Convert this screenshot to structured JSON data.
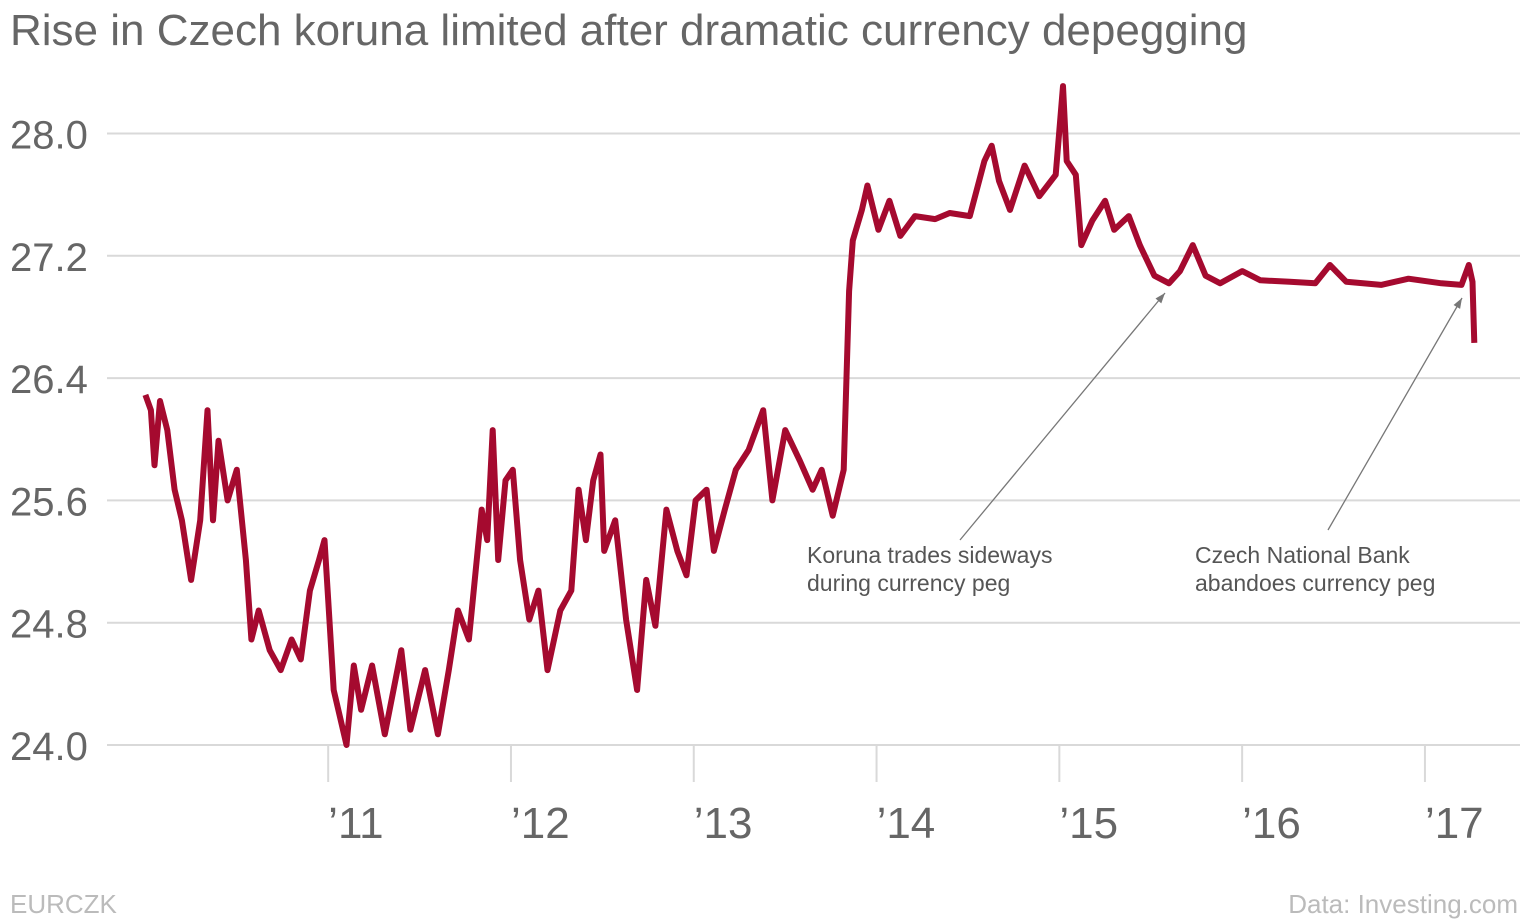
{
  "chart_data": {
    "type": "line",
    "title": "Rise in Czech koruna limited after dramatic currency depegging",
    "source": "Data: Investing.com",
    "footnote": "EURCZK",
    "color": "#a50a2f",
    "grid": true,
    "xlim": [
      2009.79,
      2017.52
    ],
    "ylim": [
      24.0,
      28.35
    ],
    "yticks": [
      {
        "value": 24,
        "label": "24.0"
      },
      24.8,
      25.6,
      26.4,
      27.2,
      {
        "value": 28,
        "label": "28.0"
      }
    ],
    "xticks": [
      {
        "value": 2011,
        "label": "’11"
      },
      {
        "value": 2012,
        "label": "’12"
      },
      {
        "value": 2013,
        "label": "’13"
      },
      {
        "value": 2014,
        "label": "’14"
      },
      {
        "value": 2015,
        "label": "’15"
      },
      {
        "value": 2016,
        "label": "’16"
      },
      {
        "value": 2017,
        "label": "’17"
      }
    ],
    "x": [
      2010.0,
      2010.03,
      2010.05,
      2010.08,
      2010.12,
      2010.16,
      2010.2,
      2010.25,
      2010.3,
      2010.34,
      2010.37,
      2010.4,
      2010.45,
      2010.5,
      2010.55,
      2010.58,
      2010.62,
      2010.68,
      2010.74,
      2010.8,
      2010.85,
      2010.9,
      2010.95,
      2010.98,
      2011.0,
      2011.03,
      2011.1,
      2011.14,
      2011.18,
      2011.24,
      2011.31,
      2011.4,
      2011.45,
      2011.53,
      2011.6,
      2011.66,
      2011.71,
      2011.77,
      2011.84,
      2011.87,
      2011.9,
      2011.93,
      2011.97,
      2012.01,
      2012.05,
      2012.1,
      2012.15,
      2012.2,
      2012.27,
      2012.33,
      2012.37,
      2012.41,
      2012.45,
      2012.49,
      2012.51,
      2012.57,
      2012.63,
      2012.69,
      2012.74,
      2012.79,
      2012.85,
      2012.91,
      2012.96,
      2013.01,
      2013.07,
      2013.11,
      2013.17,
      2013.23,
      2013.3,
      2013.38,
      2013.43,
      2013.5,
      2013.58,
      2013.65,
      2013.7,
      2013.76,
      2013.82,
      2013.85,
      2013.87,
      2013.92,
      2013.95,
      2014.01,
      2014.07,
      2014.13,
      2014.21,
      2014.32,
      2014.4,
      2014.51,
      2014.59,
      2014.63,
      2014.67,
      2014.73,
      2014.81,
      2014.89,
      2014.98,
      2015.02,
      2015.04,
      2015.09,
      2015.12,
      2015.18,
      2015.25,
      2015.3,
      2015.38,
      2015.44,
      2015.52,
      2015.6,
      2015.66,
      2015.73,
      2015.8,
      2015.88,
      2016.0,
      2016.1,
      2016.26,
      2016.4,
      2016.48,
      2016.57,
      2016.76,
      2016.91,
      2017.09,
      2017.2,
      2017.24,
      2017.26,
      2017.27
    ],
    "values": [
      26.29,
      26.19,
      25.83,
      26.25,
      26.06,
      25.67,
      25.47,
      25.08,
      25.47,
      26.19,
      25.47,
      25.99,
      25.6,
      25.8,
      25.21,
      24.69,
      24.88,
      24.62,
      24.49,
      24.69,
      24.56,
      25.01,
      25.21,
      25.34,
      24.95,
      24.36,
      24.0,
      24.52,
      24.23,
      24.52,
      24.07,
      24.62,
      24.1,
      24.49,
      24.07,
      24.49,
      24.88,
      24.69,
      25.54,
      25.34,
      26.06,
      25.21,
      25.73,
      25.8,
      25.21,
      24.82,
      25.01,
      24.49,
      24.88,
      25.01,
      25.67,
      25.34,
      25.73,
      25.9,
      25.27,
      25.47,
      24.82,
      24.36,
      25.08,
      24.78,
      25.54,
      25.27,
      25.11,
      25.6,
      25.67,
      25.27,
      25.54,
      25.8,
      25.93,
      26.19,
      25.6,
      26.06,
      25.86,
      25.67,
      25.8,
      25.5,
      25.8,
      26.97,
      27.3,
      27.5,
      27.66,
      27.37,
      27.56,
      27.33,
      27.46,
      27.44,
      27.48,
      27.46,
      27.82,
      27.92,
      27.69,
      27.5,
      27.79,
      27.59,
      27.73,
      28.31,
      27.82,
      27.73,
      27.27,
      27.43,
      27.56,
      27.37,
      27.46,
      27.27,
      27.07,
      27.02,
      27.1,
      27.27,
      27.07,
      27.02,
      27.1,
      27.04,
      27.03,
      27.02,
      27.14,
      27.03,
      27.01,
      27.05,
      27.02,
      27.01,
      27.14,
      27.03,
      26.63
    ],
    "annotations": [
      {
        "lines": [
          "Koruna trades sideways",
          "during currency peg"
        ]
      },
      {
        "lines": [
          "Czech National Bank",
          "abandoes currency peg"
        ]
      }
    ]
  }
}
